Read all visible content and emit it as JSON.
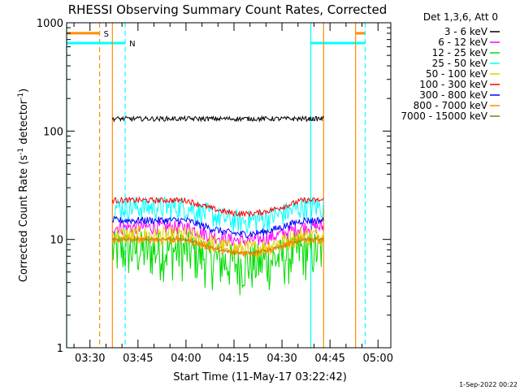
{
  "chart_data": {
    "type": "line",
    "title": "RHESSI Observing Summary Count Rates, Corrected",
    "xlabel": "Start Time (11-May-17 03:22:42)",
    "ylabel_parts": [
      "Corrected Count Rate (s",
      "-1",
      " detector",
      "-1",
      ")"
    ],
    "y_scale": "log",
    "ylim": [
      1,
      1000
    ],
    "y_ticks": [
      {
        "value": 1,
        "label": "1"
      },
      {
        "value": 10,
        "label": "10"
      },
      {
        "value": 100,
        "label": "100"
      },
      {
        "value": 1000,
        "label": "1000"
      }
    ],
    "x_range_minutes": [
      "03:22:42",
      "05:04:00"
    ],
    "x_ticks": [
      "03:30",
      "03:45",
      "04:00",
      "04:15",
      "04:30",
      "04:45",
      "05:00"
    ],
    "legend_title": "Det 1,3,6, Att 0",
    "legend_position": "right",
    "series": [
      {
        "name": "3 - 6 keV",
        "color": "#000000",
        "start": "03:37",
        "end": "04:43",
        "level": 130,
        "spread": 0.05
      },
      {
        "name": "6 - 12 keV",
        "color": "#ff00ff",
        "start": "03:37",
        "end": "04:43",
        "level": 13,
        "spread": 0.15
      },
      {
        "name": "12 - 25 keV",
        "color": "#00dd00",
        "start": "03:37",
        "end": "04:43",
        "level": 8,
        "spread": 0.5
      },
      {
        "name": "25 - 50 keV",
        "color": "#00ffff",
        "start": "03:37",
        "end": "04:43",
        "level": 20,
        "spread": 0.25
      },
      {
        "name": "50 - 100 keV",
        "color": "#e0d000",
        "start": "03:37",
        "end": "04:43",
        "level": 11,
        "spread": 0.2
      },
      {
        "name": "100 - 300 keV",
        "color": "#ff0000",
        "start": "03:37",
        "end": "04:43",
        "level": 23,
        "spread": 0.06
      },
      {
        "name": "300 - 800 keV",
        "color": "#0000ff",
        "start": "03:37",
        "end": "04:43",
        "level": 15,
        "spread": 0.08
      },
      {
        "name": "800 - 7000 keV",
        "color": "#ff8c00",
        "start": "03:37",
        "end": "04:43",
        "level": 10,
        "spread": 0.08
      },
      {
        "name": "7000 - 15000 keV",
        "color": "#808000",
        "start": "03:37",
        "end": "04:43",
        "level": 10,
        "spread": 0.03
      }
    ],
    "markers": [
      {
        "label": "S",
        "color": "#ff8c00",
        "time": "03:33",
        "style": "dashed",
        "bar_from": "03:22:42",
        "level": 800
      },
      {
        "label": "N",
        "color": "#00ffff",
        "time": "03:41",
        "style": "dashed",
        "bar_from": "03:22:42",
        "level": 650
      },
      {
        "label": "",
        "color": "#00ffff",
        "time": "04:39",
        "style": "solid",
        "bar_to": "04:56",
        "level": 650
      },
      {
        "label": "",
        "color": "#ff8c00",
        "time": "04:43",
        "style": "solid"
      },
      {
        "label": "",
        "color": "#ff8c00",
        "time": "04:53",
        "style": "solid",
        "bar_to": "04:56",
        "level": 800
      },
      {
        "label": "",
        "color": "#00ffff",
        "time": "04:56",
        "style": "dashed"
      },
      {
        "label": "",
        "color": "#00ffff",
        "time": "03:22:42",
        "style": "solid"
      },
      {
        "label": "",
        "color": "#ff8c00",
        "time": "03:37",
        "style": "solid"
      }
    ],
    "footer_date": "1-Sep-2022 00:22"
  }
}
